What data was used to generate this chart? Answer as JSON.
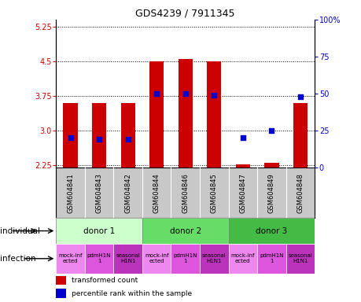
{
  "title": "GDS4239 / 7911345",
  "samples": [
    "GSM604841",
    "GSM604843",
    "GSM604842",
    "GSM604844",
    "GSM604846",
    "GSM604845",
    "GSM604847",
    "GSM604849",
    "GSM604848"
  ],
  "bar_values": [
    3.6,
    3.6,
    3.6,
    4.5,
    4.55,
    4.5,
    2.27,
    2.3,
    3.6
  ],
  "bar_bottom": 2.2,
  "percentile_values": [
    20,
    19,
    19,
    50,
    50,
    49,
    20,
    25,
    48
  ],
  "ylim_left": [
    2.2,
    5.4
  ],
  "ylim_right": [
    0,
    100
  ],
  "yticks_left": [
    2.25,
    3.0,
    3.75,
    4.5,
    5.25
  ],
  "yticks_right": [
    0,
    25,
    50,
    75,
    100
  ],
  "bar_color": "#cc0000",
  "dot_color": "#0000cc",
  "dot_size": 18,
  "donors": [
    {
      "label": "donor 1",
      "start": 0,
      "end": 3,
      "color": "#ccffcc"
    },
    {
      "label": "donor 2",
      "start": 3,
      "end": 6,
      "color": "#66dd66"
    },
    {
      "label": "donor 3",
      "start": 6,
      "end": 9,
      "color": "#44bb44"
    }
  ],
  "inf_colors": [
    "#ee88ee",
    "#dd55dd",
    "#bb33bb"
  ],
  "inf_labels": [
    [
      "mock-inf",
      "ected"
    ],
    [
      "pdmH1N",
      "1"
    ],
    [
      "seasonal",
      "H1N1"
    ],
    [
      "mock-inf",
      "ected"
    ],
    [
      "pdmH1N",
      "1"
    ],
    [
      "seasonal",
      "H1N1"
    ],
    [
      "mock-inf",
      "ected"
    ],
    [
      "pdmH1N",
      "1"
    ],
    [
      "seasonal",
      "H1N1"
    ]
  ],
  "sample_area_color": "#c8c8c8",
  "grid_color": "black",
  "left_label_color": "#cc0000",
  "right_label_color": "#0000cc"
}
